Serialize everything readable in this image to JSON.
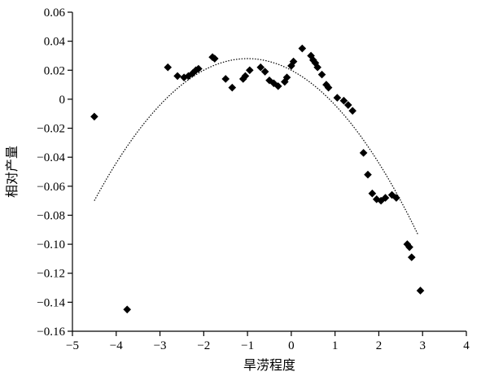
{
  "chart_data": {
    "type": "scatter",
    "xlabel": "旱涝程度",
    "ylabel": "相对产量",
    "xlim": [
      -5,
      4
    ],
    "ylim": [
      -0.16,
      0.06
    ],
    "x_ticks": [
      -5,
      -4,
      -3,
      -2,
      -1,
      0,
      1,
      2,
      3,
      4
    ],
    "y_ticks": [
      0.06,
      0.04,
      0.02,
      0,
      -0.02,
      -0.04,
      -0.06,
      -0.08,
      -0.1,
      -0.12,
      -0.14,
      -0.16
    ],
    "x_tick_labels": [
      "−5",
      "−4",
      "−3",
      "−2",
      "−1",
      "0",
      "1",
      "2",
      "3",
      "4"
    ],
    "y_tick_labels": [
      "0.06",
      "0.04",
      "0.02",
      "0",
      "−0.02",
      "−0.04",
      "−0.06",
      "−0.08",
      "−0.10",
      "−0.12",
      "−0.14",
      "−0.16"
    ],
    "grid": false,
    "points": [
      {
        "x": -4.5,
        "y": -0.012
      },
      {
        "x": -3.75,
        "y": -0.145
      },
      {
        "x": -2.82,
        "y": 0.022
      },
      {
        "x": -2.6,
        "y": 0.016
      },
      {
        "x": -2.45,
        "y": 0.015
      },
      {
        "x": -2.35,
        "y": 0.016
      },
      {
        "x": -2.25,
        "y": 0.018
      },
      {
        "x": -2.18,
        "y": 0.02
      },
      {
        "x": -2.12,
        "y": 0.021
      },
      {
        "x": -1.8,
        "y": 0.029
      },
      {
        "x": -1.75,
        "y": 0.028
      },
      {
        "x": -1.5,
        "y": 0.014
      },
      {
        "x": -1.35,
        "y": 0.008
      },
      {
        "x": -1.1,
        "y": 0.014
      },
      {
        "x": -1.05,
        "y": 0.016
      },
      {
        "x": -0.95,
        "y": 0.02
      },
      {
        "x": -0.7,
        "y": 0.022
      },
      {
        "x": -0.6,
        "y": 0.019
      },
      {
        "x": -0.5,
        "y": 0.013
      },
      {
        "x": -0.4,
        "y": 0.011
      },
      {
        "x": -0.3,
        "y": 0.009
      },
      {
        "x": -0.15,
        "y": 0.012
      },
      {
        "x": -0.1,
        "y": 0.015
      },
      {
        "x": 0.0,
        "y": 0.023
      },
      {
        "x": 0.05,
        "y": 0.026
      },
      {
        "x": 0.25,
        "y": 0.035
      },
      {
        "x": 0.45,
        "y": 0.03
      },
      {
        "x": 0.5,
        "y": 0.027
      },
      {
        "x": 0.55,
        "y": 0.025
      },
      {
        "x": 0.6,
        "y": 0.022
      },
      {
        "x": 0.7,
        "y": 0.017
      },
      {
        "x": 0.8,
        "y": 0.01
      },
      {
        "x": 0.85,
        "y": 0.008
      },
      {
        "x": 1.05,
        "y": 0.001
      },
      {
        "x": 1.2,
        "y": -0.001
      },
      {
        "x": 1.3,
        "y": -0.004
      },
      {
        "x": 1.4,
        "y": -0.008
      },
      {
        "x": 1.65,
        "y": -0.037
      },
      {
        "x": 1.75,
        "y": -0.052
      },
      {
        "x": 1.85,
        "y": -0.065
      },
      {
        "x": 1.95,
        "y": -0.069
      },
      {
        "x": 2.05,
        "y": -0.07
      },
      {
        "x": 2.15,
        "y": -0.068
      },
      {
        "x": 2.3,
        "y": -0.066
      },
      {
        "x": 2.4,
        "y": -0.068
      },
      {
        "x": 2.65,
        "y": -0.1
      },
      {
        "x": 2.7,
        "y": -0.102
      },
      {
        "x": 2.75,
        "y": -0.109
      },
      {
        "x": 2.95,
        "y": -0.132
      }
    ],
    "trendline": {
      "type": "quadratic",
      "style": "dotted",
      "coefficients": {
        "a": -0.008,
        "h": -1.0,
        "k": 0.028
      },
      "x_range": [
        -4.5,
        2.9
      ]
    },
    "colors": {
      "markers": "#000000",
      "trendline": "#000000"
    }
  }
}
